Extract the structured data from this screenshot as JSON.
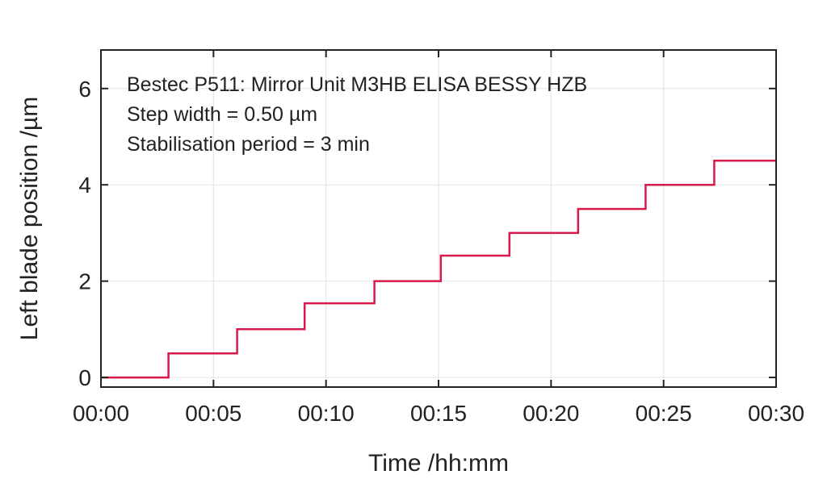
{
  "chart_data": {
    "type": "line",
    "title": "",
    "xlabel": "Time /hh:mm",
    "ylabel": "Left blade position /µm",
    "xlim": [
      0,
      30
    ],
    "ylim": [
      -0.2,
      6.8
    ],
    "x_ticks": [
      0,
      5,
      10,
      15,
      20,
      25,
      30
    ],
    "x_tick_labels": [
      "00:00",
      "00:05",
      "00:10",
      "00:15",
      "00:20",
      "00:25",
      "00:30"
    ],
    "y_ticks": [
      0,
      2,
      4,
      6
    ],
    "y_tick_labels": [
      "0",
      "2",
      "4",
      "6"
    ],
    "grid": true,
    "legend": "none",
    "annotations": [
      "Bestec P511: Mirror Unit M3HB ELISA BESSY HZB",
      "Step width = 0.50 µm",
      "Stabilisation period = 3 min"
    ],
    "series": [
      {
        "color": "#d7194b",
        "x": [
          0,
          3.0,
          3.0,
          6.05,
          6.05,
          9.05,
          9.05,
          12.15,
          12.15,
          15.1,
          15.1,
          18.15,
          18.15,
          21.2,
          21.2,
          24.2,
          24.2,
          27.25,
          27.25,
          30
        ],
        "y": [
          0,
          0,
          0.5,
          0.5,
          1.0,
          1.0,
          1.54,
          1.54,
          2.0,
          2.0,
          2.53,
          2.53,
          3.0,
          3.0,
          3.5,
          3.5,
          4.0,
          4.0,
          4.5,
          4.5
        ]
      }
    ]
  }
}
